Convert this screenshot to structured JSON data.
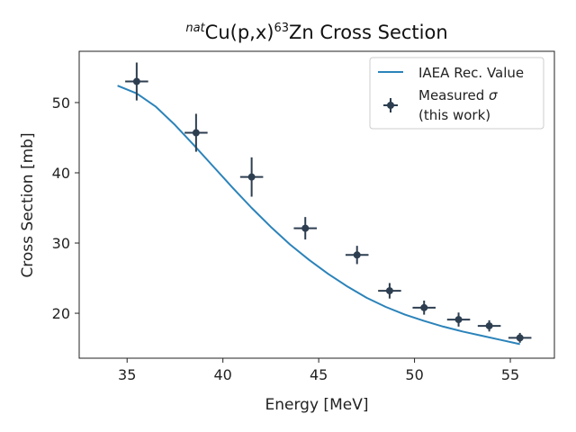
{
  "chart_data": {
    "type": "scatter",
    "title": {
      "prefix_sup": "nat",
      "main": "Cu(p,x)",
      "mass_sup": "63",
      "suffix": "Zn Cross Section"
    },
    "xlabel": "Energy [MeV]",
    "ylabel": "Cross Section [mb]",
    "xlim": [
      32.5,
      57.3
    ],
    "ylim": [
      13.6,
      57.3
    ],
    "xticks": [
      35,
      40,
      45,
      50,
      55
    ],
    "yticks": [
      20,
      30,
      40,
      50
    ],
    "legend_position": "top-right",
    "series": [
      {
        "name": "IAEA Rec. Value",
        "type": "line",
        "color": "#2b83ba",
        "x": [
          34.5,
          35.5,
          36.5,
          37.5,
          38.5,
          39.5,
          40.5,
          41.5,
          42.5,
          43.5,
          44.5,
          45.5,
          46.5,
          47.5,
          48.5,
          49.5,
          50.5,
          51.5,
          52.5,
          53.5,
          54.5,
          55.5
        ],
        "y": [
          52.4,
          51.3,
          49.4,
          46.8,
          43.9,
          40.9,
          37.9,
          35.0,
          32.3,
          29.8,
          27.6,
          25.6,
          23.8,
          22.2,
          20.9,
          19.8,
          18.9,
          18.1,
          17.4,
          16.8,
          16.2,
          15.6
        ]
      },
      {
        "name": "Measured σ (this work)",
        "label_line1": "Measured ",
        "label_sigma": "σ",
        "label_line2": "(this work)",
        "type": "errorbar",
        "color": "#2d3e50",
        "points": [
          {
            "x": 35.5,
            "y": 53.0,
            "xerr": 0.6,
            "yerr": 2.7
          },
          {
            "x": 38.6,
            "y": 45.7,
            "xerr": 0.6,
            "yerr": 2.7
          },
          {
            "x": 41.5,
            "y": 39.4,
            "xerr": 0.6,
            "yerr": 2.8
          },
          {
            "x": 44.3,
            "y": 32.1,
            "xerr": 0.6,
            "yerr": 1.6
          },
          {
            "x": 47.0,
            "y": 28.3,
            "xerr": 0.6,
            "yerr": 1.3
          },
          {
            "x": 48.7,
            "y": 23.2,
            "xerr": 0.6,
            "yerr": 1.1
          },
          {
            "x": 50.5,
            "y": 20.8,
            "xerr": 0.6,
            "yerr": 1.0
          },
          {
            "x": 52.3,
            "y": 19.1,
            "xerr": 0.6,
            "yerr": 1.0
          },
          {
            "x": 53.9,
            "y": 18.2,
            "xerr": 0.6,
            "yerr": 0.8
          },
          {
            "x": 55.5,
            "y": 16.5,
            "xerr": 0.6,
            "yerr": 0.7
          }
        ]
      }
    ]
  }
}
